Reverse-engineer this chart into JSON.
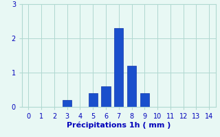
{
  "categories": [
    0,
    1,
    2,
    3,
    4,
    5,
    6,
    7,
    8,
    9,
    10,
    11,
    12,
    13,
    14
  ],
  "values": [
    0,
    0,
    0,
    0.2,
    0,
    0.4,
    0.6,
    2.3,
    1.2,
    0.4,
    0,
    0,
    0,
    0,
    0
  ],
  "bar_color": "#1a4fcc",
  "bar_edge_color": "#1133aa",
  "background_color": "#e8f8f4",
  "grid_color": "#b0d8d0",
  "text_color": "#0000bb",
  "xlabel": "Précipitations 1h ( mm )",
  "ylim": [
    0,
    3
  ],
  "yticks": [
    0,
    1,
    2,
    3
  ],
  "xticks": [
    0,
    1,
    2,
    3,
    4,
    5,
    6,
    7,
    8,
    9,
    10,
    11,
    12,
    13,
    14
  ],
  "xlabel_fontsize": 8,
  "tick_fontsize": 7,
  "bar_width": 0.7
}
